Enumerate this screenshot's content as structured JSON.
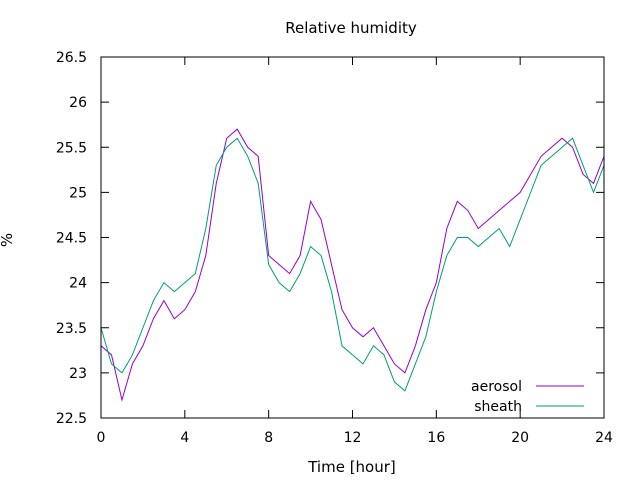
{
  "chart_data": {
    "type": "line",
    "title": "Relative humidity",
    "xlabel": "Time [hour]",
    "ylabel": "%",
    "xlim": [
      0,
      24
    ],
    "ylim": [
      22.5,
      26.5
    ],
    "xticks": [
      0,
      4,
      8,
      12,
      16,
      20,
      24
    ],
    "yticks": [
      22.5,
      23,
      23.5,
      24,
      24.5,
      25,
      25.5,
      26,
      26.5
    ],
    "xtick_labels": [
      "0",
      "4",
      "8",
      "12",
      "16",
      "20",
      "24"
    ],
    "ytick_labels": [
      "22.5",
      "23",
      "23.5",
      "24",
      "24.5",
      "25",
      "25.5",
      "26",
      "26.5"
    ],
    "grid": false,
    "legend_position": "bottom-right",
    "x": [
      0,
      0.5,
      1,
      1.5,
      2,
      2.5,
      3,
      3.5,
      4,
      4.5,
      5,
      5.5,
      6,
      6.5,
      7,
      7.5,
      8,
      8.5,
      9,
      9.5,
      10,
      10.5,
      11,
      11.5,
      12,
      12.5,
      13,
      13.5,
      14,
      14.5,
      15,
      15.5,
      16,
      16.5,
      17,
      17.5,
      18,
      18.5,
      19,
      19.5,
      20,
      20.5,
      21,
      21.5,
      22,
      22.5,
      23,
      23.5,
      24
    ],
    "series": [
      {
        "name": "aerosol",
        "color": "#9400d3",
        "values": [
          23.3,
          23.2,
          22.7,
          23.1,
          23.3,
          23.6,
          23.8,
          23.6,
          23.7,
          23.9,
          24.3,
          25.1,
          25.6,
          25.7,
          25.5,
          25.4,
          24.3,
          24.2,
          24.1,
          24.3,
          24.9,
          24.7,
          24.2,
          23.7,
          23.5,
          23.4,
          23.5,
          23.3,
          23.1,
          23.0,
          23.3,
          23.7,
          24.0,
          24.6,
          24.9,
          24.8,
          24.6,
          24.7,
          24.8,
          24.9,
          25.0,
          25.2,
          25.4,
          25.5,
          25.6,
          25.5,
          25.2,
          25.1,
          25.4
        ]
      },
      {
        "name": "sheath",
        "color": "#009e73",
        "values": [
          23.5,
          23.1,
          23.0,
          23.2,
          23.5,
          23.8,
          24.0,
          23.9,
          24.0,
          24.1,
          24.6,
          25.3,
          25.5,
          25.6,
          25.4,
          25.1,
          24.2,
          24.0,
          23.9,
          24.1,
          24.4,
          24.3,
          23.9,
          23.3,
          23.2,
          23.1,
          23.3,
          23.2,
          22.9,
          22.8,
          23.1,
          23.4,
          23.9,
          24.3,
          24.5,
          24.5,
          24.4,
          24.5,
          24.6,
          24.4,
          24.7,
          25.0,
          25.3,
          25.4,
          25.5,
          25.6,
          25.3,
          25.0,
          25.3
        ]
      }
    ]
  }
}
